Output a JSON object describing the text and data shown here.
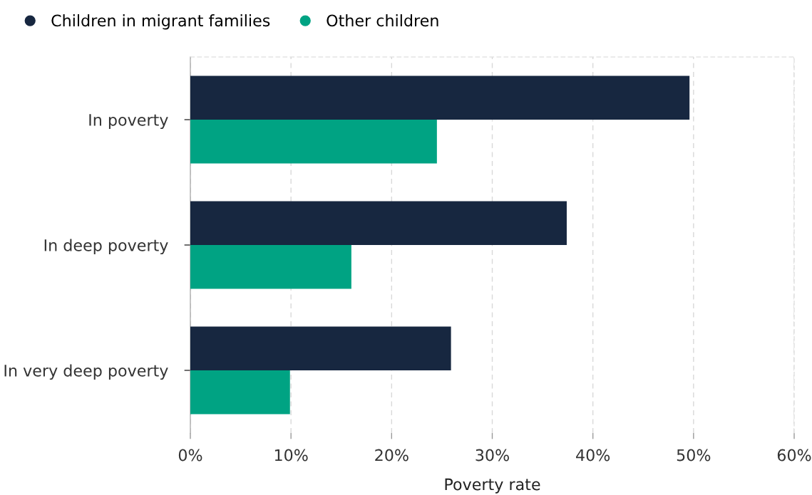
{
  "chart_data": {
    "type": "bar",
    "orientation": "horizontal",
    "xlabel": "Poverty rate",
    "categories": [
      "In poverty",
      "In deep poverty",
      "In very deep poverty"
    ],
    "series": [
      {
        "name": "Children in migrant families",
        "color": "#172740",
        "values": [
          49.6,
          37.4,
          25.9
        ]
      },
      {
        "name": "Other children",
        "color": "#00a383",
        "values": [
          24.5,
          16.0,
          9.9
        ]
      }
    ],
    "xlim": [
      0,
      60
    ],
    "xticks": [
      {
        "value": 0,
        "label": "0%"
      },
      {
        "value": 10,
        "label": "10%"
      },
      {
        "value": 20,
        "label": "20%"
      },
      {
        "value": 30,
        "label": "30%"
      },
      {
        "value": 40,
        "label": "40%"
      },
      {
        "value": 50,
        "label": "50%"
      },
      {
        "value": 60,
        "label": "60%"
      }
    ],
    "grid": "x",
    "legend": "top left"
  }
}
